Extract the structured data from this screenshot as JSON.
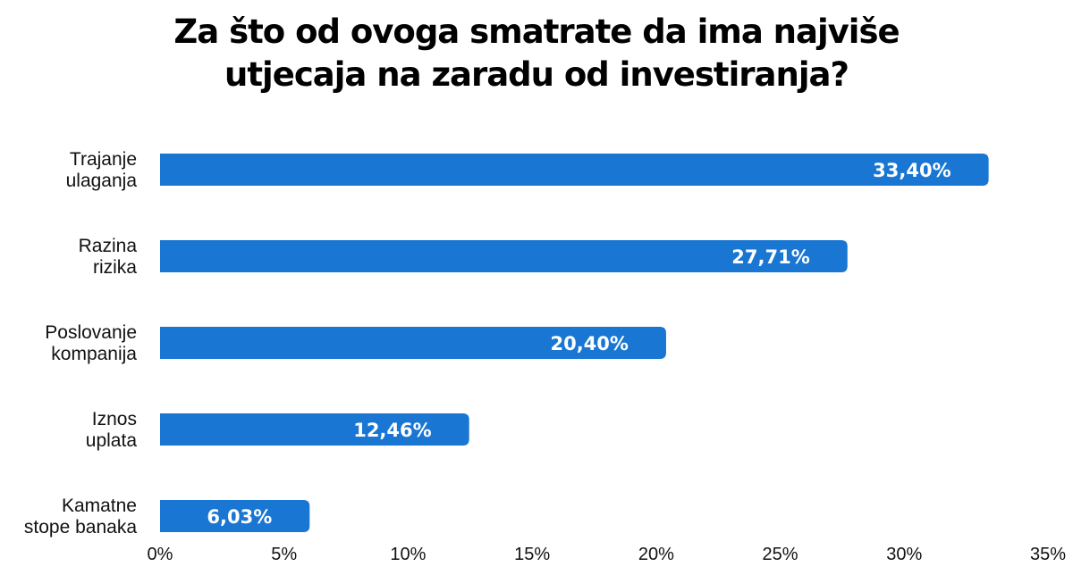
{
  "chart_data": {
    "type": "bar",
    "orientation": "horizontal",
    "title_lines": [
      "Za što od ovoga smatrate da ima najviše",
      "utjecaja na zaradu od investiranja?"
    ],
    "categories": [
      [
        "Trajanje",
        "ulaganja"
      ],
      [
        "Razina",
        "rizika"
      ],
      [
        "Poslovanje",
        "kompanija"
      ],
      [
        "Iznos",
        "uplata"
      ],
      [
        "Kamatne",
        "stope banaka"
      ]
    ],
    "values": [
      33.4,
      27.71,
      20.4,
      12.46,
      6.03
    ],
    "value_labels": [
      "33,40%",
      "27,71%",
      "20,40%",
      "12,46%",
      "6,03%"
    ],
    "xlim": [
      0,
      35
    ],
    "ticks": [
      0,
      5,
      10,
      15,
      20,
      25,
      30,
      35
    ],
    "tick_labels": [
      "0%",
      "5%",
      "10%",
      "15%",
      "20%",
      "25%",
      "30%",
      "35%"
    ],
    "xlabel": "",
    "ylabel": "",
    "grid": false,
    "bar_color": "#1976d2"
  }
}
